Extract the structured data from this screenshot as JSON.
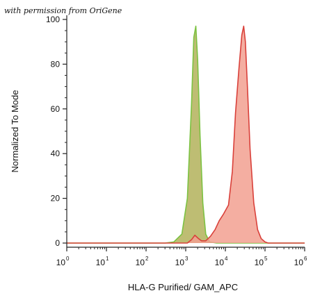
{
  "watermark": "with permission from OriGene",
  "chart_data": {
    "type": "area",
    "title": "",
    "xlabel": "HLA-G Purified/ GAM_APC",
    "ylabel": "Normalized To Mode",
    "x_scale": "log",
    "xlim": [
      1,
      1000000
    ],
    "ylim": [
      0,
      100
    ],
    "x_ticks": [
      {
        "base": "10",
        "exp": "0"
      },
      {
        "base": "10",
        "exp": "1"
      },
      {
        "base": "10",
        "exp": "2"
      },
      {
        "base": "10",
        "exp": "3"
      },
      {
        "base": "10",
        "exp": "4"
      },
      {
        "base": "10",
        "exp": "5"
      },
      {
        "base": "10",
        "exp": "6"
      }
    ],
    "y_ticks": [
      "0",
      "20",
      "40",
      "60",
      "80",
      "100"
    ],
    "grid": false,
    "series": [
      {
        "color": "#7cc242",
        "fill": "#b3b25a",
        "x": [
          1,
          300,
          500,
          800,
          1100,
          1400,
          1600,
          1800,
          2000,
          2300,
          2700,
          3200,
          4000,
          6000,
          1000000
        ],
        "y": [
          0,
          0,
          0.5,
          4,
          20,
          62,
          92,
          97,
          82,
          48,
          18,
          4,
          0.5,
          0,
          0
        ]
      },
      {
        "color": "#d9403a",
        "fill": "#f2a090",
        "x": [
          1,
          1100,
          1400,
          1700,
          2100,
          2500,
          3200,
          4200,
          5500,
          7000,
          9000,
          12000,
          15000,
          18000,
          22000,
          26000,
          29000,
          32000,
          36000,
          42000,
          52000,
          65000,
          80000,
          100000,
          120000,
          1000000
        ],
        "y": [
          0,
          0,
          1.5,
          3.5,
          2,
          1,
          1,
          3,
          6,
          10,
          13,
          17,
          32,
          58,
          78,
          93,
          97,
          90,
          70,
          42,
          18,
          6,
          2,
          0.5,
          0,
          0
        ]
      }
    ]
  }
}
